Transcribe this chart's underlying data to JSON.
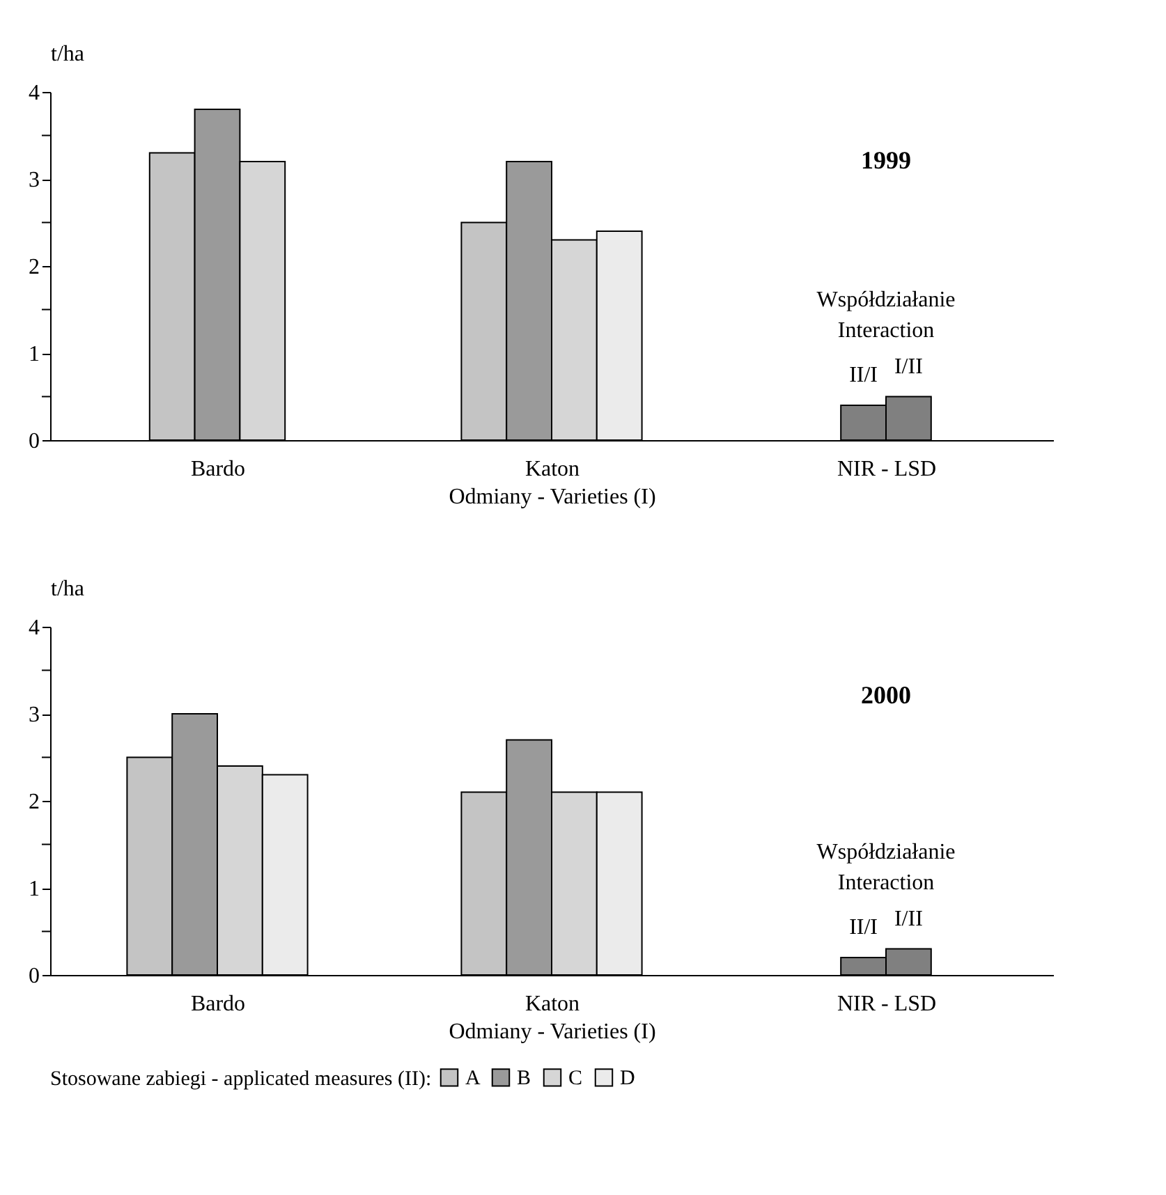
{
  "chart_data": [
    {
      "type": "bar",
      "categories": [
        "Bardo",
        "Katon",
        "NIR - LSD"
      ],
      "xlabel": "Odmiany - Varieties (I)",
      "ylabel": "t/ha",
      "ylim": [
        0,
        4
      ],
      "yticks": [
        0,
        {
          "value": 0.5,
          "label": null
        },
        1,
        {
          "value": 1.5,
          "label": null
        },
        2,
        {
          "value": 2.5,
          "label": null
        },
        3,
        {
          "value": 3.5,
          "label": null
        },
        4
      ],
      "legend": "bottom",
      "annotations": [
        "1999",
        "Współdziałanie",
        "Interaction"
      ],
      "series": [
        {
          "name": "A",
          "color": "#c4c4c4",
          "values": [
            3.3,
            2.5,
            null
          ]
        },
        {
          "name": "B",
          "color": "#9a9a9a",
          "values": [
            3.8,
            3.2,
            null
          ]
        },
        {
          "name": "C",
          "color": "#d6d6d6",
          "values": [
            3.2,
            2.3,
            null
          ]
        },
        {
          "name": "D",
          "color": "#ebebeb",
          "values": [
            null,
            2.4,
            null
          ]
        },
        {
          "name": "II/I",
          "color": "#808080",
          "values": [
            null,
            null,
            0.4
          ]
        },
        {
          "name": "I/II",
          "color": "#808080",
          "values": [
            null,
            null,
            0.5
          ]
        }
      ]
    },
    {
      "type": "bar",
      "categories": [
        "Bardo",
        "Katon",
        "NIR - LSD"
      ],
      "xlabel": "Odmiany - Varieties (I)",
      "ylabel": "t/ha",
      "ylim": [
        0,
        4
      ],
      "yticks": [
        0,
        {
          "value": 0.5,
          "label": null
        },
        1,
        {
          "value": 1.5,
          "label": null
        },
        2,
        {
          "value": 2.5,
          "label": null
        },
        3,
        {
          "value": 3.5,
          "label": null
        },
        4
      ],
      "legend": "bottom",
      "legend_title": "Stosowane zabiegi - applicated measures (II):",
      "annotations": [
        "2000",
        "Współdziałanie",
        "Interaction"
      ],
      "series": [
        {
          "name": "A",
          "color": "#c4c4c4",
          "values": [
            2.5,
            2.1,
            null
          ]
        },
        {
          "name": "B",
          "color": "#9a9a9a",
          "values": [
            3.0,
            2.7,
            null
          ]
        },
        {
          "name": "C",
          "color": "#d6d6d6",
          "values": [
            2.4,
            2.1,
            null
          ]
        },
        {
          "name": "D",
          "color": "#ebebeb",
          "values": [
            2.3,
            2.1,
            null
          ]
        },
        {
          "name": "II/I",
          "color": "#808080",
          "values": [
            null,
            null,
            0.2
          ]
        },
        {
          "name": "I/II",
          "color": "#808080",
          "values": [
            null,
            null,
            0.3
          ]
        }
      ]
    }
  ]
}
